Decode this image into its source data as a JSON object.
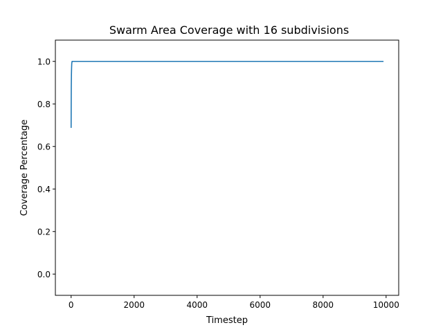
{
  "chart_data": {
    "type": "line",
    "title": "Swarm Area Coverage with 16 subdivisions",
    "xlabel": "Timestep",
    "ylabel": "Coverage Percentage",
    "xlim": [
      -500,
      10400
    ],
    "ylim": [
      -0.1,
      1.1
    ],
    "xticks": [
      0,
      2000,
      4000,
      6000,
      8000,
      10000
    ],
    "xtick_labels": [
      "0",
      "2000",
      "4000",
      "6000",
      "8000",
      "10000"
    ],
    "yticks": [
      0.0,
      0.2,
      0.4,
      0.6,
      0.8,
      1.0
    ],
    "ytick_labels": [
      "0.0",
      "0.2",
      "0.4",
      "0.6",
      "0.8",
      "1.0"
    ],
    "grid": false,
    "series": [
      {
        "color": "#1f77b4",
        "x": [
          0,
          2,
          5,
          10,
          15,
          20,
          30,
          50,
          100,
          1000,
          5000,
          9900
        ],
        "y": [
          0.69,
          0.78,
          0.88,
          0.94,
          0.97,
          0.99,
          1.0,
          1.0,
          1.0,
          1.0,
          1.0,
          1.0
        ]
      }
    ]
  }
}
